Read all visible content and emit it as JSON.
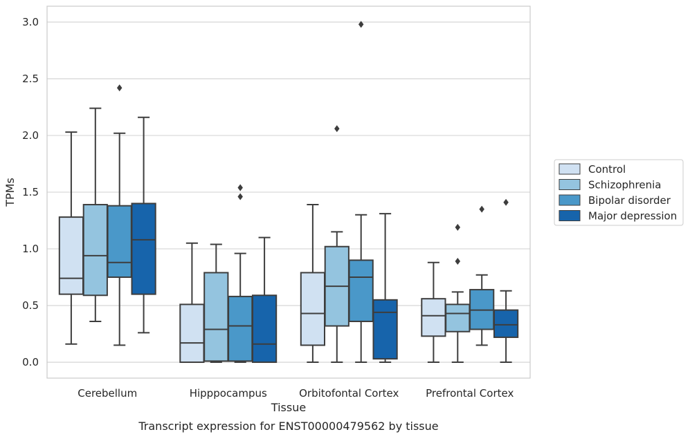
{
  "chart_data": {
    "type": "box",
    "title": "",
    "caption": "Transcript expression for ENST00000479562 by tissue",
    "xlabel": "Tissue",
    "ylabel": "TPMs",
    "ylim": [
      -0.14,
      3.14
    ],
    "yticks": [
      0.0,
      0.5,
      1.0,
      1.5,
      2.0,
      2.5,
      3.0
    ],
    "ytick_labels": [
      "0.0",
      "0.5",
      "1.0",
      "1.5",
      "2.0",
      "2.5",
      "3.0"
    ],
    "grid": "horizontal",
    "legend_position": "right",
    "categories": [
      "Cerebellum",
      "Hipppocampus",
      "Orbitofontal Cortex",
      "Prefrontal Cortex"
    ],
    "series": [
      {
        "name": "Control",
        "color": "#d0e1f2",
        "boxes": [
          {
            "whisker_low": 0.16,
            "q1": 0.6,
            "median": 0.74,
            "q3": 1.28,
            "whisker_high": 2.03,
            "outliers": []
          },
          {
            "whisker_low": 0.0,
            "q1": 0.0,
            "median": 0.17,
            "q3": 0.51,
            "whisker_high": 1.05,
            "outliers": []
          },
          {
            "whisker_low": 0.0,
            "q1": 0.15,
            "median": 0.43,
            "q3": 0.79,
            "whisker_high": 1.39,
            "outliers": []
          },
          {
            "whisker_low": 0.0,
            "q1": 0.23,
            "median": 0.41,
            "q3": 0.56,
            "whisker_high": 0.88,
            "outliers": []
          }
        ]
      },
      {
        "name": "Schizophrenia",
        "color": "#94c4df",
        "boxes": [
          {
            "whisker_low": 0.36,
            "q1": 0.59,
            "median": 0.94,
            "q3": 1.39,
            "whisker_high": 2.24,
            "outliers": []
          },
          {
            "whisker_low": 0.0,
            "q1": 0.01,
            "median": 0.29,
            "q3": 0.79,
            "whisker_high": 1.04,
            "outliers": []
          },
          {
            "whisker_low": 0.0,
            "q1": 0.32,
            "median": 0.67,
            "q3": 1.02,
            "whisker_high": 1.15,
            "outliers": [
              2.06
            ]
          },
          {
            "whisker_low": 0.0,
            "q1": 0.27,
            "median": 0.43,
            "q3": 0.51,
            "whisker_high": 0.62,
            "outliers": [
              0.89,
              1.19
            ]
          }
        ]
      },
      {
        "name": "Bipolar disorder",
        "color": "#4a98c9",
        "boxes": [
          {
            "whisker_low": 0.15,
            "q1": 0.75,
            "median": 0.88,
            "q3": 1.38,
            "whisker_high": 2.02,
            "outliers": [
              2.42
            ]
          },
          {
            "whisker_low": 0.0,
            "q1": 0.01,
            "median": 0.32,
            "q3": 0.58,
            "whisker_high": 0.96,
            "outliers": [
              1.46,
              1.54
            ]
          },
          {
            "whisker_low": 0.0,
            "q1": 0.36,
            "median": 0.75,
            "q3": 0.9,
            "whisker_high": 1.3,
            "outliers": [
              2.98
            ]
          },
          {
            "whisker_low": 0.15,
            "q1": 0.29,
            "median": 0.46,
            "q3": 0.64,
            "whisker_high": 0.77,
            "outliers": [
              1.35
            ]
          }
        ]
      },
      {
        "name": "Major depression",
        "color": "#1764ab",
        "boxes": [
          {
            "whisker_low": 0.26,
            "q1": 0.6,
            "median": 1.08,
            "q3": 1.4,
            "whisker_high": 2.16,
            "outliers": []
          },
          {
            "whisker_low": 0.0,
            "q1": 0.0,
            "median": 0.16,
            "q3": 0.59,
            "whisker_high": 1.1,
            "outliers": []
          },
          {
            "whisker_low": 0.0,
            "q1": 0.03,
            "median": 0.44,
            "q3": 0.55,
            "whisker_high": 1.31,
            "outliers": []
          },
          {
            "whisker_low": 0.0,
            "q1": 0.22,
            "median": 0.33,
            "q3": 0.46,
            "whisker_high": 0.63,
            "outliers": [
              1.41
            ]
          }
        ]
      }
    ]
  }
}
